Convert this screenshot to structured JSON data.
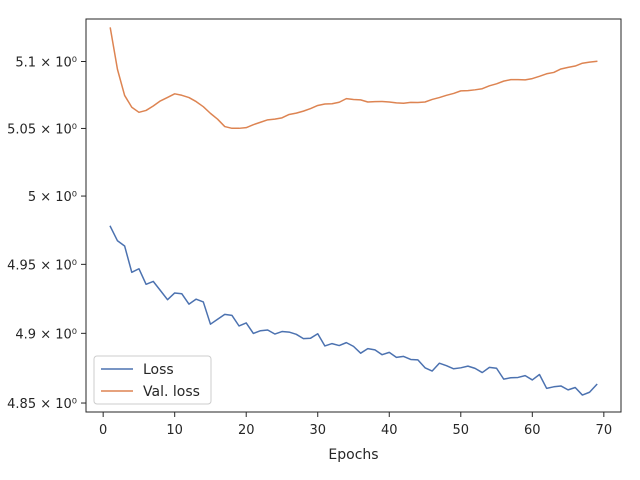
{
  "chart_data": {
    "type": "line",
    "title": "",
    "xlabel": "Epochs",
    "ylabel": "",
    "xlim": [
      -2.4,
      72.4
    ],
    "ylim": [
      4.8436,
      5.132
    ],
    "yscale": "log",
    "grid": false,
    "legend_position": "lower-left",
    "x_ticks": [
      0,
      10,
      20,
      30,
      40,
      50,
      60,
      70
    ],
    "x_tick_labels": [
      "0",
      "10",
      "20",
      "30",
      "40",
      "50",
      "60",
      "70"
    ],
    "y_ticks": [
      4.85,
      4.9,
      4.95,
      5.0,
      5.05,
      5.1
    ],
    "y_tick_labels": [
      "4.85 × 10⁰",
      "4.9 × 10⁰",
      "4.95 × 10⁰",
      "5 × 10⁰",
      "5.05 × 10⁰",
      "5.1 × 10⁰"
    ],
    "x": [
      1,
      2,
      3,
      4,
      5,
      6,
      7,
      8,
      9,
      10,
      11,
      12,
      13,
      14,
      15,
      16,
      17,
      18,
      19,
      20,
      21,
      22,
      23,
      24,
      25,
      26,
      27,
      28,
      29,
      30,
      31,
      32,
      33,
      34,
      35,
      36,
      37,
      38,
      39,
      40,
      41,
      42,
      43,
      44,
      45,
      46,
      47,
      48,
      49,
      50,
      51,
      52,
      53,
      54,
      55,
      56,
      57,
      58,
      59,
      60,
      61,
      62,
      63,
      64,
      65,
      66,
      67,
      68,
      69
    ],
    "series": [
      {
        "name": "Loss",
        "color": "#4c72b0",
        "values": [
          4.9777,
          4.9672,
          4.9634,
          4.9442,
          4.9468,
          4.9355,
          4.9376,
          4.931,
          4.9243,
          4.9292,
          4.9286,
          4.9211,
          4.9247,
          4.9227,
          4.9066,
          4.9102,
          4.9137,
          4.913,
          4.9053,
          4.9075,
          4.8999,
          4.9019,
          4.9024,
          4.8995,
          4.9013,
          4.9009,
          4.8993,
          4.8962,
          4.8965,
          4.8997,
          4.8909,
          4.8926,
          4.8912,
          4.8933,
          4.8906,
          4.8857,
          4.889,
          4.8881,
          4.8846,
          4.8863,
          4.8827,
          4.8834,
          4.8812,
          4.8809,
          4.8752,
          4.8729,
          4.8785,
          4.8767,
          4.8745,
          4.8752,
          4.8764,
          4.8748,
          4.8718,
          4.8755,
          4.8749,
          4.8671,
          4.8681,
          4.8683,
          4.8696,
          4.8665,
          4.8704,
          4.8605,
          4.8616,
          4.8622,
          4.8594,
          4.8611,
          4.8557,
          4.8577,
          4.8632
        ]
      },
      {
        "name": "Val. loss",
        "color": "#dd8452",
        "values": [
          5.1251,
          5.0941,
          5.0746,
          5.0658,
          5.062,
          5.0634,
          5.0667,
          5.0705,
          5.0731,
          5.0758,
          5.0747,
          5.073,
          5.07,
          5.0662,
          5.0612,
          5.0569,
          5.0514,
          5.0501,
          5.0501,
          5.0506,
          5.0528,
          5.0546,
          5.0564,
          5.0569,
          5.0579,
          5.0604,
          5.0614,
          5.0629,
          5.0648,
          5.0671,
          5.0682,
          5.0684,
          5.0695,
          5.0722,
          5.0716,
          5.0713,
          5.0697,
          5.07,
          5.0701,
          5.0697,
          5.069,
          5.0688,
          5.0694,
          5.0693,
          5.0697,
          5.0716,
          5.073,
          5.0747,
          5.0761,
          5.078,
          5.0782,
          5.0788,
          5.0796,
          5.0818,
          5.0833,
          5.0853,
          5.0864,
          5.0864,
          5.0862,
          5.0872,
          5.0889,
          5.0908,
          5.0918,
          5.0944,
          5.0956,
          5.0966,
          5.0987,
          5.0995,
          5.1001
        ]
      }
    ]
  }
}
